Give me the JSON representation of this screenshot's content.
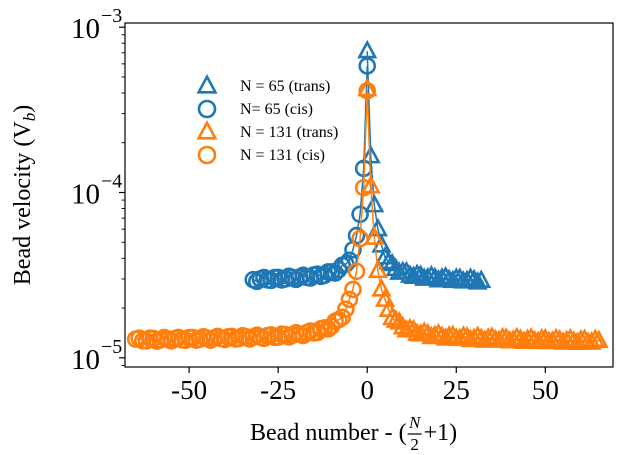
{
  "chart_data": {
    "type": "scatter",
    "xlabel": "Bead number - (N/2+1)",
    "xlabel_parts": {
      "prefix": "Bead number - (",
      "frac_num": "N",
      "frac_den": "2",
      "suffix": "+1)"
    },
    "ylabel": "Bead velocity (V",
    "ylabel_sub": "b",
    "ylabel_close": ")",
    "x_ticks": [
      -50,
      -25,
      0,
      25,
      50
    ],
    "x_tick_labels": [
      "-50",
      "-25",
      "0",
      "25",
      "50"
    ],
    "xlim": [
      -68,
      69
    ],
    "y_scale": "log",
    "ylim": [
      8.8e-06,
      0.00106
    ],
    "y_ticks": [
      1e-05,
      0.0001,
      0.001
    ],
    "y_tick_labels": [
      {
        "base": "10",
        "exp": "−5"
      },
      {
        "base": "10",
        "exp": "−4"
      },
      {
        "base": "10",
        "exp": "−3"
      }
    ],
    "legend_position": "upper-left",
    "series": [
      {
        "name": "N = 65 (trans)",
        "marker": "triangle",
        "color": "#1f77b4",
        "n": 65,
        "side": "trans",
        "center": 0.0007,
        "edge": 2.9e-05,
        "peak_exp": 0.68
      },
      {
        "name": "N= 65 (cis)",
        "marker": "circle",
        "color": "#1f77b4",
        "n": 65,
        "side": "cis",
        "center": 0.00057,
        "edge": 2.95e-05,
        "peak_exp": 0.68
      },
      {
        "name": "N = 131 (trans)",
        "marker": "triangle",
        "color": "#ff7f0e",
        "n": 131,
        "side": "trans",
        "center": 0.00043,
        "edge": 1.25e-05,
        "peak_exp": 0.55
      },
      {
        "name": "N = 131 (cis)",
        "marker": "circle",
        "color": "#ff7f0e",
        "n": 131,
        "side": "cis",
        "center": 0.00042,
        "edge": 1.28e-05,
        "peak_exp": 0.55
      }
    ]
  }
}
